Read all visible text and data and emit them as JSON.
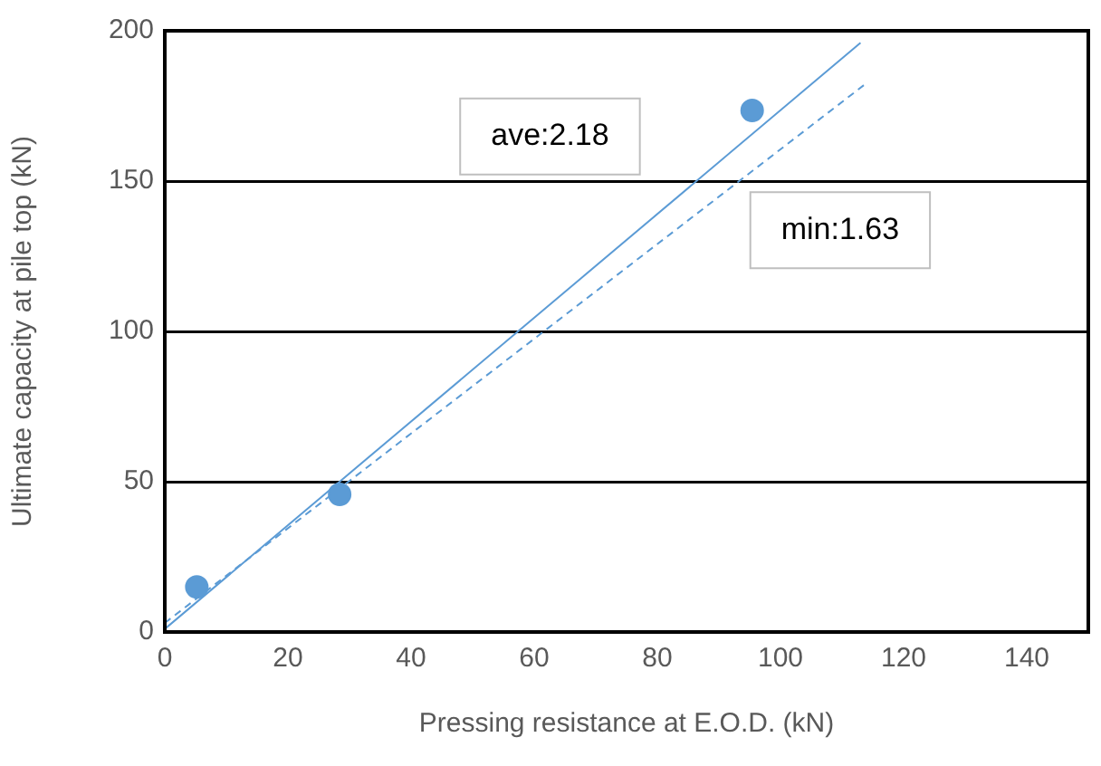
{
  "chart_data": {
    "type": "scatter",
    "xlabel": "Pressing resistance at E.O.D. (kN)",
    "ylabel": "Ultimate capacity at pile top (kN)",
    "xlim": [
      0,
      150
    ],
    "xticks": [
      0,
      20,
      40,
      60,
      80,
      100,
      120,
      140
    ],
    "ylim": [
      0,
      200
    ],
    "yticks": [
      0,
      50,
      100,
      150,
      200
    ],
    "grid": "y",
    "legend": false,
    "series": [
      {
        "type": "scatter",
        "color": "#5b9bd5",
        "marker": "circle",
        "x": [
          5.2,
          28.4,
          95.4
        ],
        "values": [
          15,
          45.8,
          173.5
        ]
      },
      {
        "type": "line",
        "name": "ave:2.18",
        "color": "#5b9bd5",
        "marker": "none",
        "line_style": "solid",
        "x": [
          0,
          113
        ],
        "values": [
          1,
          196
        ]
      },
      {
        "type": "line",
        "name": "min:1.63",
        "color": "#5b9bd5",
        "marker": "none",
        "line_style": "dashed",
        "x": [
          0,
          113.6
        ],
        "values": [
          3,
          182
        ]
      }
    ]
  }
}
